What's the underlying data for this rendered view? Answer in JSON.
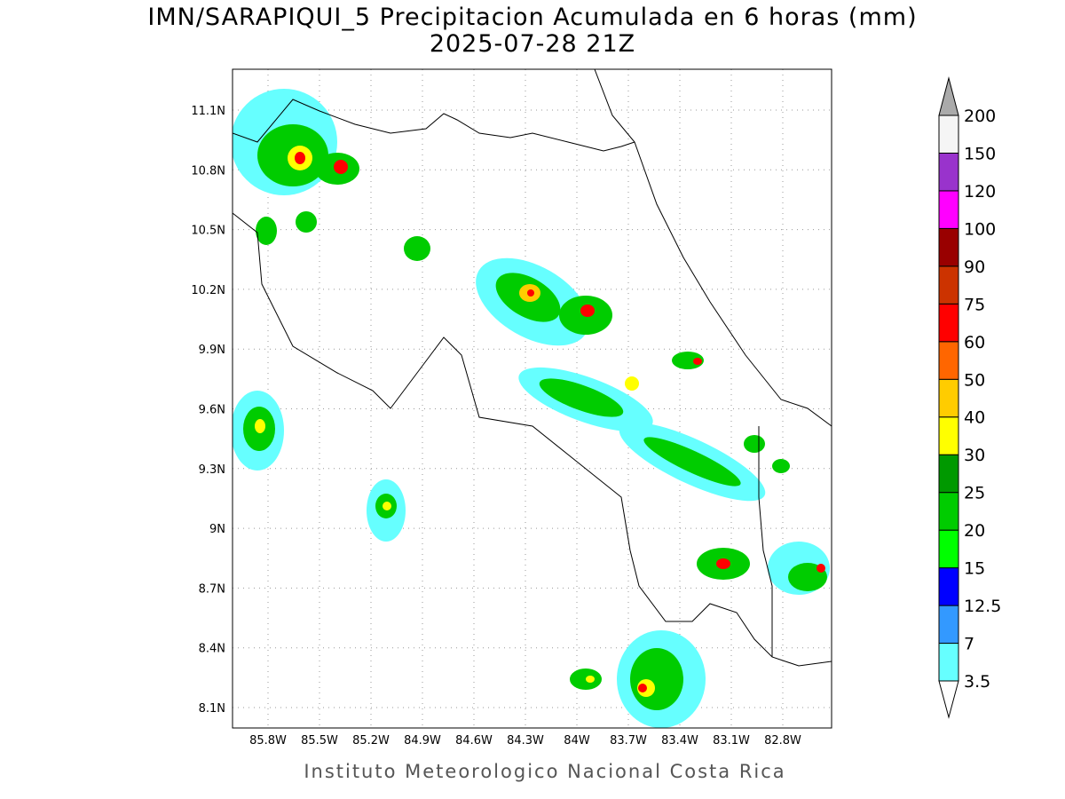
{
  "header": {
    "title": "IMN/SARAPIQUI_5 Precipitacion Acumulada en 6 horas (mm)",
    "subtitle": "2025-07-28 21Z"
  },
  "map": {
    "lon_labels": [
      "85.8W",
      "85.5W",
      "85.2W",
      "84.9W",
      "84.6W",
      "84.3W",
      "84W",
      "83.7W",
      "83.4W",
      "83.1W",
      "82.8W"
    ],
    "lat_labels": [
      "11.1N",
      "10.8N",
      "10.5N",
      "10.2N",
      "9.9N",
      "9.6N",
      "9.3N",
      "9N",
      "8.7N",
      "8.4N",
      "8.1N"
    ]
  },
  "colorbar": {
    "levels": [
      "3.5",
      "7",
      "12.5",
      "15",
      "20",
      "25",
      "30",
      "40",
      "50",
      "60",
      "75",
      "90",
      "100",
      "120",
      "150",
      "200"
    ],
    "colors": [
      "#66ffff",
      "#3399ff",
      "#0000ff",
      "#00ff00",
      "#00cc00",
      "#009900",
      "#ffff00",
      "#ffcc00",
      "#ff6600",
      "#ff0000",
      "#cc3300",
      "#990000",
      "#ff00ff",
      "#9933cc",
      "#f5f5f5"
    ],
    "over_color": "#aaaaaa",
    "under_color": "#ffffff"
  },
  "footer": {
    "credit": "Instituto Meteorologico Nacional Costa Rica"
  }
}
